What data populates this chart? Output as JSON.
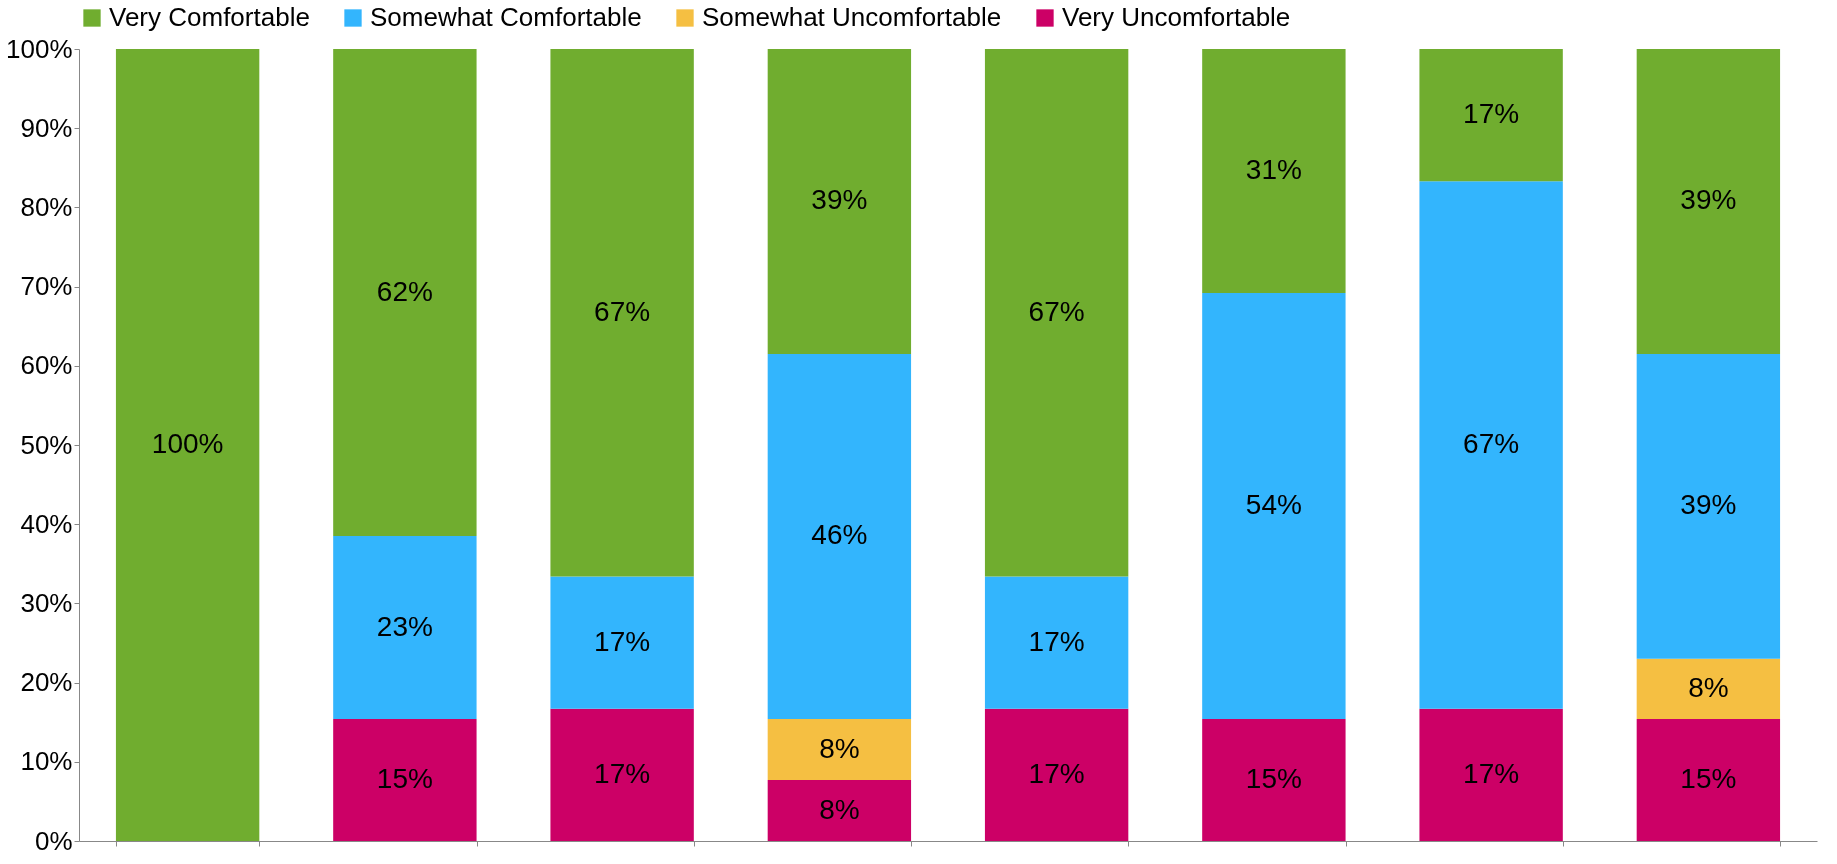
{
  "chart_data": {
    "type": "bar",
    "stacked": true,
    "categories": [
      null,
      null,
      null,
      null,
      null,
      null,
      null,
      null
    ],
    "series": [
      {
        "name": "Very Uncomfortable",
        "color": "#cc0066",
        "values": [
          null,
          15.4,
          16.7,
          7.7,
          16.7,
          15.4,
          16.7,
          15.4
        ],
        "value_labels": [
          null,
          "15%",
          "17%",
          "8%",
          "17%",
          "15%",
          "17%",
          "15%"
        ]
      },
      {
        "name": "Somewhat Uncomfortable",
        "color": "#f5bf42",
        "values": [
          null,
          null,
          null,
          7.7,
          null,
          null,
          null,
          7.6
        ],
        "value_labels": [
          null,
          null,
          null,
          "8%",
          null,
          null,
          null,
          "8%"
        ]
      },
      {
        "name": "Somewhat Comfortable",
        "color": "#33b5fd",
        "values": [
          null,
          23.1,
          16.7,
          46.1,
          16.7,
          53.8,
          66.6,
          38.5
        ],
        "value_labels": [
          null,
          "23%",
          "17%",
          "46%",
          "17%",
          "54%",
          "67%",
          "39%"
        ]
      },
      {
        "name": "Very Comfortable",
        "color": "#70ad2f",
        "values": [
          100,
          61.5,
          66.6,
          38.5,
          66.6,
          30.8,
          16.7,
          38.5
        ],
        "value_labels": [
          "100%",
          "62%",
          "67%",
          "39%",
          "67%",
          "31%",
          "17%",
          "39%"
        ]
      }
    ],
    "ylim": [
      0,
      100
    ],
    "yticks": [
      {
        "value": 0,
        "label": "0%"
      },
      {
        "value": 10,
        "label": "10%"
      },
      {
        "value": 20,
        "label": "20%"
      },
      {
        "value": 30,
        "label": "30%"
      },
      {
        "value": 40,
        "label": "40%"
      },
      {
        "value": 50,
        "label": "50%"
      },
      {
        "value": 60,
        "label": "60%"
      },
      {
        "value": 70,
        "label": "70%"
      },
      {
        "value": 80,
        "label": "80%"
      },
      {
        "value": 90,
        "label": "90%"
      },
      {
        "value": 100,
        "label": "100%"
      }
    ],
    "grid": false,
    "legend": "top",
    "tick_labels": "y"
  }
}
